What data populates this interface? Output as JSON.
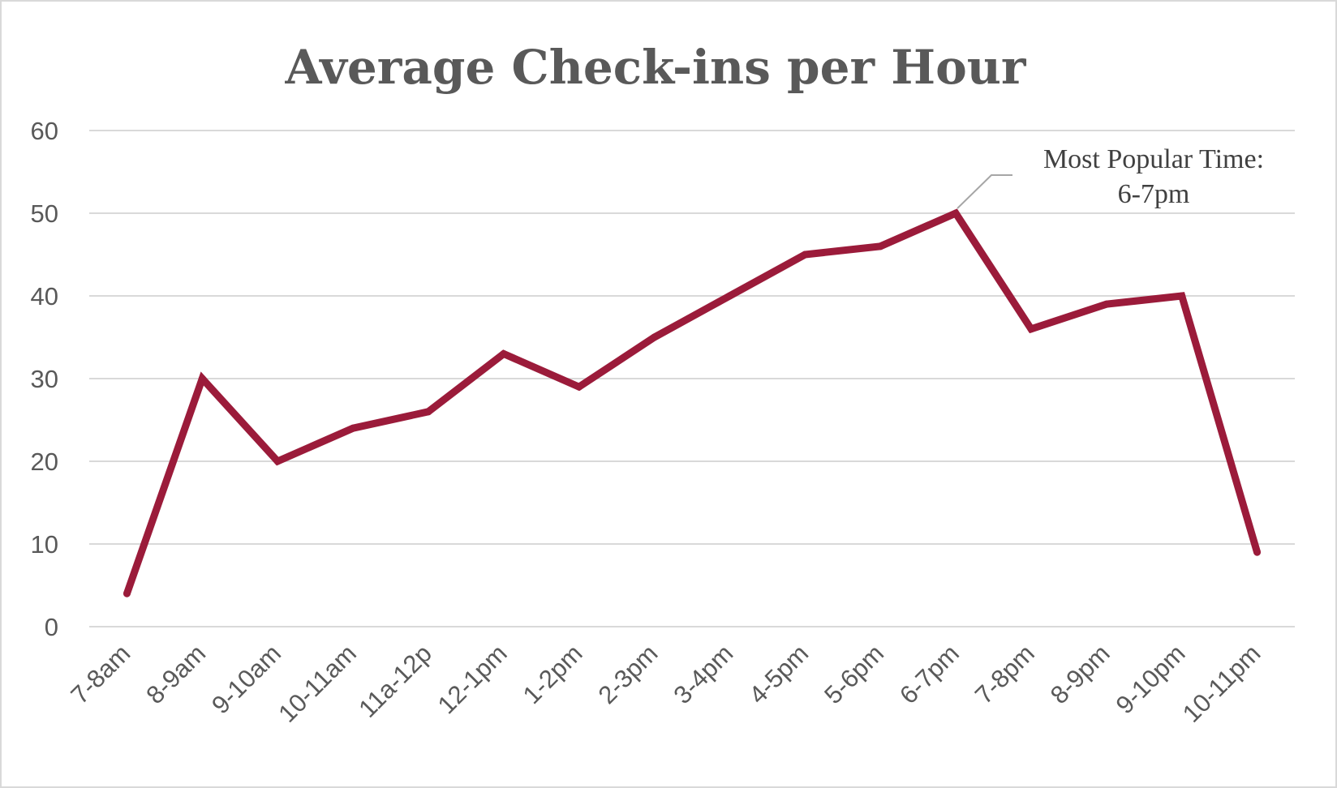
{
  "chart_data": {
    "type": "line",
    "title": "Average Check-ins per Hour",
    "xlabel": "",
    "ylabel": "",
    "ylim": [
      0,
      60
    ],
    "yticks": [
      "0",
      "10",
      "20",
      "30",
      "40",
      "50",
      "60"
    ],
    "grid": true,
    "categories": [
      "7-8am",
      "8-9am",
      "9-10am",
      "10-11am",
      "11a-12p",
      "12-1pm",
      "1-2pm",
      "2-3pm",
      "3-4pm",
      "4-5pm",
      "5-6pm",
      "6-7pm",
      "7-8pm",
      "8-9pm",
      "9-10pm",
      "10-11pm"
    ],
    "series": [
      {
        "name": "Average Check-ins",
        "values": [
          4,
          30,
          20,
          24,
          26,
          33,
          29,
          35,
          40,
          45,
          46,
          50,
          36,
          39,
          40,
          9
        ],
        "color": "#9b1b3a"
      }
    ],
    "annotation": {
      "lines": [
        "Most Popular Time:",
        "6-7pm"
      ],
      "target_category": "6-7pm",
      "leader_color": "#a6a6a6"
    }
  }
}
